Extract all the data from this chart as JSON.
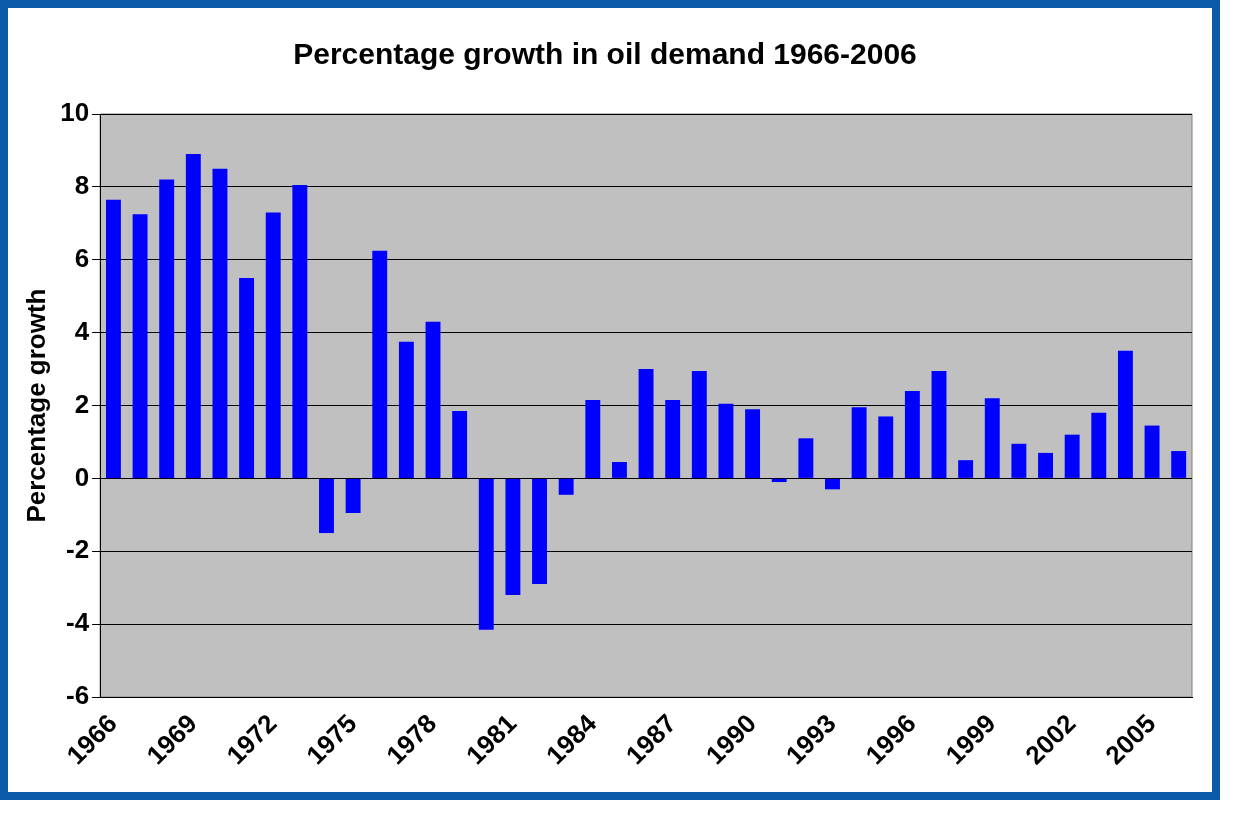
{
  "chart_data": {
    "type": "bar",
    "title": "Percentage growth in oil demand 1966-2006",
    "ylabel": "Percentage growth",
    "categories": [
      "1966",
      null,
      null,
      "1969",
      null,
      null,
      "1972",
      null,
      null,
      "1975",
      null,
      null,
      "1978",
      null,
      null,
      "1981",
      null,
      null,
      "1984",
      null,
      null,
      "1987",
      null,
      null,
      "1990",
      null,
      null,
      "1993",
      null,
      null,
      "1996",
      null,
      null,
      "1999",
      null,
      null,
      "2002",
      null,
      null,
      "2005",
      null
    ],
    "values": [
      7.65,
      7.25,
      8.2,
      8.9,
      8.5,
      5.5,
      7.3,
      8.05,
      -1.5,
      -0.95,
      6.25,
      3.75,
      4.3,
      1.85,
      -4.15,
      -3.2,
      -2.9,
      -0.45,
      2.15,
      0.45,
      3.0,
      2.15,
      2.95,
      2.05,
      1.9,
      -0.1,
      1.1,
      -0.3,
      1.95,
      1.7,
      2.4,
      2.95,
      0.5,
      2.2,
      0.95,
      0.7,
      1.2,
      1.8,
      3.5,
      1.45,
      0.75
    ],
    "color": "#0000ff",
    "ylim": [
      -6,
      10
    ],
    "yticks": [
      -6,
      -4,
      -2,
      0,
      2,
      4,
      6,
      8,
      10
    ],
    "grid": "y",
    "legend": false
  }
}
